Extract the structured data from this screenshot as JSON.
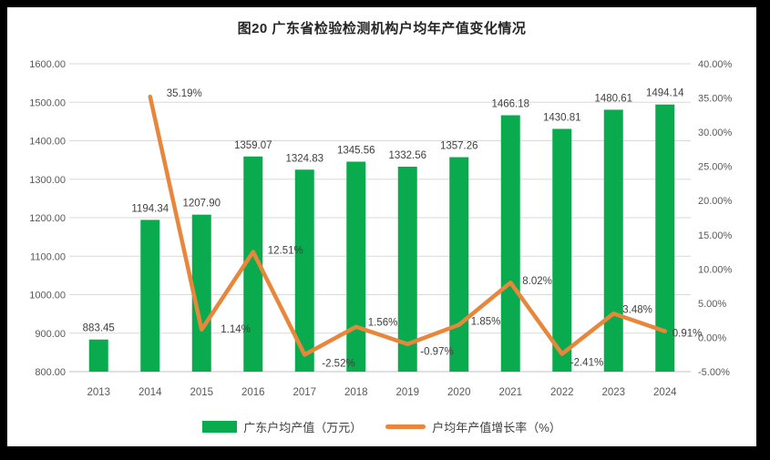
{
  "title": "图20 广东省检验检测机构户均年产值变化情况",
  "frame": {
    "border_color": "#000000",
    "background": "#ffffff"
  },
  "chart_data": {
    "type": "bar+line combo",
    "title": "图20 广东省检验检测机构户均年产值变化情况",
    "categories": [
      "2013",
      "2014",
      "2015",
      "2016",
      "2017",
      "2018",
      "2019",
      "2020",
      "2021",
      "2022",
      "2023",
      "2024"
    ],
    "series": [
      {
        "name": "广东户均产值（万元）",
        "type": "bar",
        "axis": "left",
        "color": "#0aab4e",
        "values": [
          883.45,
          1194.34,
          1207.9,
          1359.07,
          1324.83,
          1345.56,
          1332.56,
          1357.26,
          1466.18,
          1430.81,
          1480.61,
          1494.14
        ],
        "labels": [
          "883.45",
          "1194.34",
          "1207.90",
          "1359.07",
          "1324.83",
          "1345.56",
          "1332.56",
          "1357.26",
          "1466.18",
          "1430.81",
          "1480.61",
          "1494.14"
        ]
      },
      {
        "name": "户均年产值增长率（%）",
        "type": "line",
        "axis": "right",
        "color": "#e8863c",
        "values": [
          null,
          35.19,
          1.14,
          12.51,
          -2.52,
          1.56,
          -0.97,
          1.85,
          8.02,
          -2.41,
          3.48,
          0.91
        ],
        "labels": [
          "",
          "35.19%",
          "1.14%",
          "12.51%",
          "-2.52%",
          "1.56%",
          "-0.97%",
          "1.85%",
          "8.02%",
          "-2.41%",
          "3.48%",
          "0.91%"
        ]
      }
    ],
    "left_axis": {
      "min": 800,
      "max": 1600,
      "step": 100,
      "tick_values": [
        1600,
        1500,
        1400,
        1300,
        1200,
        1100,
        1000,
        900,
        800
      ],
      "tick_labels": [
        "1600.00",
        "1500.00",
        "1400.00",
        "1300.00",
        "1200.00",
        "1100.00",
        "1000.00",
        "900.00",
        "800.00"
      ]
    },
    "right_axis": {
      "min": -5,
      "max": 40,
      "step": 5,
      "tick_values": [
        40,
        35,
        30,
        25,
        20,
        15,
        10,
        5,
        0,
        -5
      ],
      "tick_labels": [
        "40.00%",
        "35.00%",
        "30.00%",
        "25.00%",
        "20.00%",
        "15.00%",
        "10.00%",
        "5.00%",
        "0.00%",
        "-5.00%"
      ]
    },
    "grid": true,
    "gridline_color": "#d9d9d9",
    "baseline_color": "#c0c0c0",
    "legend_position": "bottom"
  }
}
